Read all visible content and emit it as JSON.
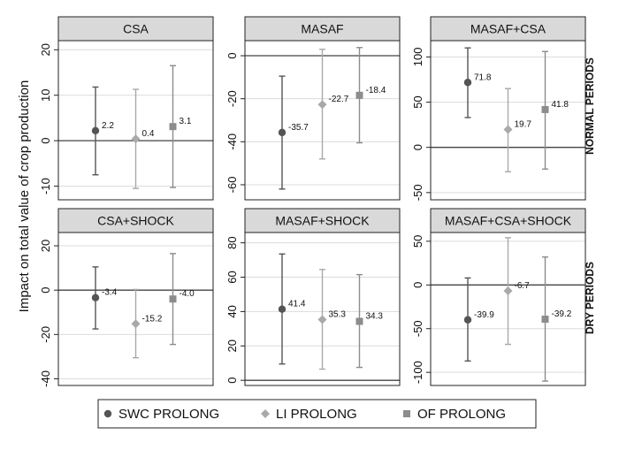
{
  "figure": {
    "ylabel": "Impact on total value of crop production",
    "row_labels": [
      "NORMAL PERIODS",
      "DRY PERIODS"
    ]
  },
  "legend": [
    {
      "name": "SWC PROLONG",
      "marker": "circle",
      "color": "#555555"
    },
    {
      "name": "LI PROLONG",
      "marker": "diamond",
      "color": "#a9a9a9"
    },
    {
      "name": "OF PROLONG",
      "marker": "square",
      "color": "#8c8c8c"
    }
  ],
  "chart_data": [
    {
      "type": "errorbar",
      "title": "CSA",
      "ylim": [
        -13,
        22
      ],
      "yticks": [
        -10,
        0,
        10,
        20
      ],
      "tick_labels": [
        "-10",
        "0",
        "10",
        "20"
      ],
      "series": [
        {
          "name": "SWC PROLONG",
          "value": 2.2,
          "low": -7.5,
          "high": 11.8,
          "label": "2.2"
        },
        {
          "name": "LI PROLONG",
          "value": 0.4,
          "low": -10.5,
          "high": 11.3,
          "label": "0.4"
        },
        {
          "name": "OF PROLONG",
          "value": 3.1,
          "low": -10.3,
          "high": 16.5,
          "label": "3.1"
        }
      ]
    },
    {
      "type": "errorbar",
      "title": "MASAF",
      "ylim": [
        -67,
        7
      ],
      "yticks": [
        -60,
        -40,
        -20,
        0
      ],
      "tick_labels": [
        "-60",
        "-40",
        "-20",
        "0"
      ],
      "series": [
        {
          "name": "SWC PROLONG",
          "value": -35.7,
          "low": -62,
          "high": -9.5,
          "label": "-35.7"
        },
        {
          "name": "LI PROLONG",
          "value": -22.7,
          "low": -48,
          "high": 3,
          "label": "-22.7"
        },
        {
          "name": "OF PROLONG",
          "value": -18.4,
          "low": -40.5,
          "high": 3.8,
          "label": "-18.4"
        }
      ]
    },
    {
      "type": "errorbar",
      "title": "MASAF+CSA",
      "ylim": [
        -58,
        118
      ],
      "yticks": [
        -50,
        0,
        50,
        100
      ],
      "tick_labels": [
        "-50",
        "0",
        "50",
        "100"
      ],
      "series": [
        {
          "name": "SWC PROLONG",
          "value": 71.8,
          "low": 33,
          "high": 110,
          "label": "71.8"
        },
        {
          "name": "LI PROLONG",
          "value": 19.7,
          "low": -27,
          "high": 65,
          "label": "19.7"
        },
        {
          "name": "OF PROLONG",
          "value": 41.8,
          "low": -24,
          "high": 106,
          "label": "41.8"
        }
      ]
    },
    {
      "type": "errorbar",
      "title": "CSA+SHOCK",
      "ylim": [
        -43,
        26
      ],
      "yticks": [
        -40,
        -20,
        0,
        20
      ],
      "tick_labels": [
        "-40",
        "-20",
        "0",
        "20"
      ],
      "series": [
        {
          "name": "SWC PROLONG",
          "value": -3.4,
          "low": -17.5,
          "high": 10.5,
          "label": "-3.4"
        },
        {
          "name": "LI PROLONG",
          "value": -15.2,
          "low": -30.5,
          "high": 0.3,
          "label": "-15.2"
        },
        {
          "name": "OF PROLONG",
          "value": -4.0,
          "low": -24.5,
          "high": 16.5,
          "label": "-4.0"
        }
      ]
    },
    {
      "type": "errorbar",
      "title": "MASAF+SHOCK",
      "ylim": [
        -3,
        86
      ],
      "yticks": [
        0,
        20,
        40,
        60,
        80
      ],
      "tick_labels": [
        "0",
        "20",
        "40",
        "60",
        "80"
      ],
      "series": [
        {
          "name": "SWC PROLONG",
          "value": 41.4,
          "low": 9.5,
          "high": 73.5,
          "label": "41.4"
        },
        {
          "name": "LI PROLONG",
          "value": 35.3,
          "low": 6.5,
          "high": 64.5,
          "label": "35.3"
        },
        {
          "name": "OF PROLONG",
          "value": 34.3,
          "low": 7.5,
          "high": 61.5,
          "label": "34.3"
        }
      ]
    },
    {
      "type": "errorbar",
      "title": "MASAF+CSA+SHOCK",
      "ylim": [
        -115,
        60
      ],
      "yticks": [
        -100,
        -50,
        0,
        50
      ],
      "tick_labels": [
        "-100",
        "-50",
        "0",
        "50"
      ],
      "series": [
        {
          "name": "SWC PROLONG",
          "value": -39.9,
          "low": -87,
          "high": 8,
          "label": "-39.9"
        },
        {
          "name": "LI PROLONG",
          "value": -6.7,
          "low": -68,
          "high": 54,
          "label": "-6.7"
        },
        {
          "name": "OF PROLONG",
          "value": -39.2,
          "low": -110,
          "high": 32,
          "label": "-39.2"
        }
      ]
    }
  ]
}
